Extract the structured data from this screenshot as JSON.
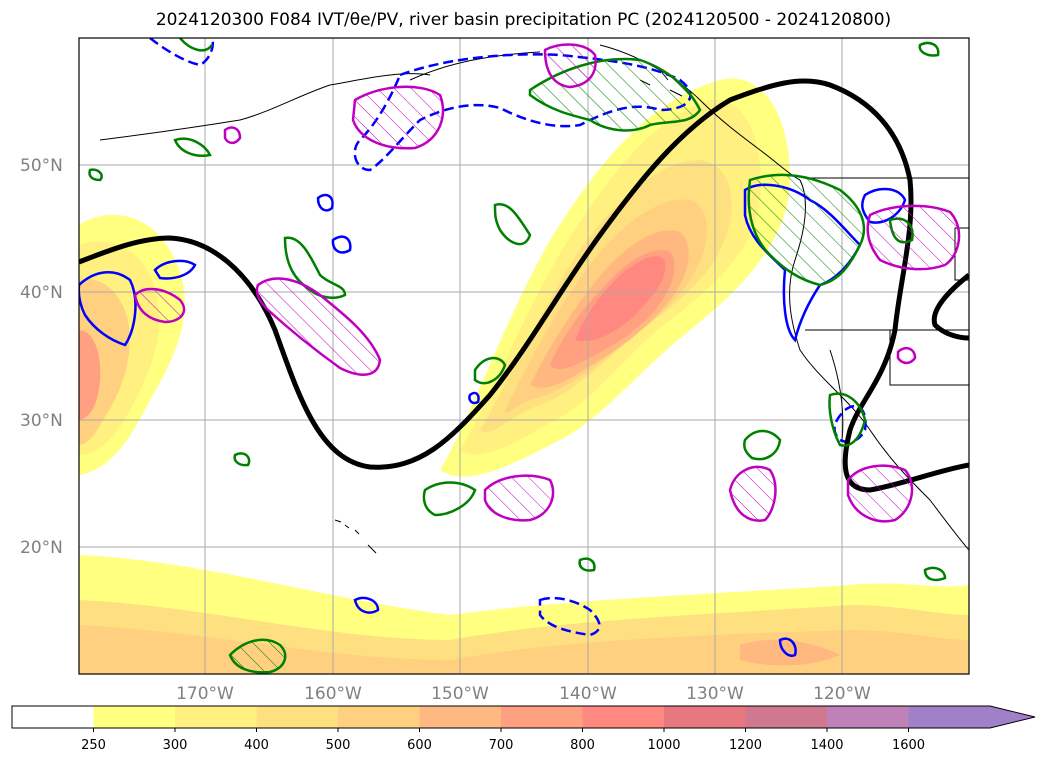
{
  "title": "2024120300 F084 IVT/θe/PV, river basin precipitation PC (2024120500 - 2024120800)",
  "map": {
    "lat_labels": [
      "50°N",
      "40°N",
      "30°N",
      "20°N"
    ],
    "lon_labels": [
      "170°W",
      "160°W",
      "150°W",
      "140°W",
      "130°W",
      "120°W"
    ]
  },
  "colorbar": {
    "levels": [
      "250",
      "300",
      "400",
      "500",
      "600",
      "700",
      "800",
      "1000",
      "1200",
      "1400",
      "1600"
    ],
    "colors": [
      "#ffff80",
      "#fff080",
      "#ffe080",
      "#ffd080",
      "#ffb880",
      "#ffa080",
      "#ff8880",
      "#e87880",
      "#d07890",
      "#c080b8",
      "#a080c8"
    ],
    "extend": "max"
  },
  "contour_colors": {
    "ivt_fill": "#ffd070",
    "theta_e_line": "#000000",
    "pv_positive": "#0000ff",
    "pv_negative_dashed": "#0000ff",
    "precip_pc_green": "#008000",
    "precip_pc_magenta": "#c000c0"
  }
}
